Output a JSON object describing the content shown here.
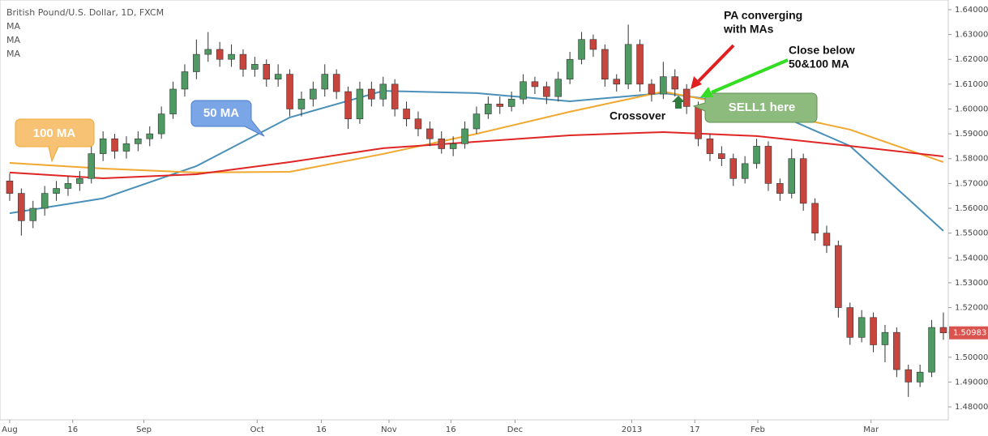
{
  "chart_data": {
    "type": "candlestick",
    "title": "British Pound/U.S. Dollar, 1D, FXCM",
    "ylim": [
      1.4748,
      1.6439
    ],
    "yticks": [
      {
        "value": 1.48,
        "label": "1.48000"
      },
      {
        "value": 1.49,
        "label": "1.49000"
      },
      {
        "value": 1.5,
        "label": "1.50000"
      },
      {
        "value": 1.51,
        "label": "1.51000"
      },
      {
        "value": 1.52,
        "label": "1.52000"
      },
      {
        "value": 1.53,
        "label": "1.53000"
      },
      {
        "value": 1.54,
        "label": "1.54000"
      },
      {
        "value": 1.55,
        "label": "1.55000"
      },
      {
        "value": 1.56,
        "label": "1.56000"
      },
      {
        "value": 1.57,
        "label": "1.57000"
      },
      {
        "value": 1.58,
        "label": "1.58000"
      },
      {
        "value": 1.59,
        "label": "1.59000"
      },
      {
        "value": 1.6,
        "label": "1.60000"
      },
      {
        "value": 1.61,
        "label": "1.61000"
      },
      {
        "value": 1.62,
        "label": "1.62000"
      },
      {
        "value": 1.63,
        "label": "1.63000"
      },
      {
        "value": 1.64,
        "label": "1.64000"
      }
    ],
    "xlim": [
      -0.83,
      80.42
    ],
    "xticks": [
      {
        "value": 0,
        "label": "Aug"
      },
      {
        "value": 5.4,
        "label": "16"
      },
      {
        "value": 11.5,
        "label": "Sep"
      },
      {
        "value": 21.2,
        "label": "Oct"
      },
      {
        "value": 26.7,
        "label": "16"
      },
      {
        "value": 32.5,
        "label": "Nov"
      },
      {
        "value": 37.8,
        "label": "16"
      },
      {
        "value": 43.3,
        "label": "Dec"
      },
      {
        "value": 53.3,
        "label": "2013"
      },
      {
        "value": 58.7,
        "label": "17"
      },
      {
        "value": 64.1,
        "label": "Feb"
      },
      {
        "value": 73.8,
        "label": "Mar"
      }
    ],
    "up_color": "#4e9a62",
    "down_color": "#c8453d",
    "candles": [
      [
        1.571,
        1.574,
        1.563,
        1.566
      ],
      [
        1.566,
        1.568,
        1.549,
        1.555
      ],
      [
        1.555,
        1.563,
        1.552,
        1.56
      ],
      [
        1.56,
        1.569,
        1.557,
        1.566
      ],
      [
        1.566,
        1.571,
        1.563,
        1.568
      ],
      [
        1.568,
        1.573,
        1.565,
        1.57
      ],
      [
        1.57,
        1.575,
        1.567,
        1.572
      ],
      [
        1.572,
        1.586,
        1.57,
        1.582
      ],
      [
        1.582,
        1.591,
        1.579,
        1.588
      ],
      [
        1.588,
        1.59,
        1.58,
        1.583
      ],
      [
        1.583,
        1.589,
        1.58,
        1.586
      ],
      [
        1.586,
        1.591,
        1.583,
        1.588
      ],
      [
        1.588,
        1.593,
        1.585,
        1.59
      ],
      [
        1.59,
        1.601,
        1.588,
        1.598
      ],
      [
        1.598,
        1.611,
        1.596,
        1.608
      ],
      [
        1.608,
        1.618,
        1.605,
        1.615
      ],
      [
        1.615,
        1.628,
        1.612,
        1.622
      ],
      [
        1.622,
        1.631,
        1.619,
        1.624
      ],
      [
        1.624,
        1.627,
        1.617,
        1.62
      ],
      [
        1.62,
        1.626,
        1.617,
        1.622
      ],
      [
        1.622,
        1.624,
        1.613,
        1.616
      ],
      [
        1.616,
        1.621,
        1.613,
        1.618
      ],
      [
        1.618,
        1.62,
        1.609,
        1.612
      ],
      [
        1.612,
        1.618,
        1.609,
        1.614
      ],
      [
        1.614,
        1.616,
        1.597,
        1.6
      ],
      [
        1.6,
        1.607,
        1.597,
        1.604
      ],
      [
        1.604,
        1.611,
        1.601,
        1.608
      ],
      [
        1.608,
        1.618,
        1.605,
        1.614
      ],
      [
        1.614,
        1.616,
        1.604,
        1.607
      ],
      [
        1.607,
        1.609,
        1.592,
        1.596
      ],
      [
        1.596,
        1.611,
        1.594,
        1.608
      ],
      [
        1.608,
        1.611,
        1.601,
        1.604
      ],
      [
        1.604,
        1.613,
        1.601,
        1.61
      ],
      [
        1.61,
        1.612,
        1.597,
        1.6
      ],
      [
        1.6,
        1.603,
        1.593,
        1.596
      ],
      [
        1.596,
        1.599,
        1.589,
        1.592
      ],
      [
        1.592,
        1.595,
        1.585,
        1.588
      ],
      [
        1.588,
        1.591,
        1.582,
        1.584
      ],
      [
        1.584,
        1.589,
        1.581,
        1.586
      ],
      [
        1.586,
        1.595,
        1.584,
        1.592
      ],
      [
        1.592,
        1.601,
        1.59,
        1.598
      ],
      [
        1.598,
        1.605,
        1.596,
        1.602
      ],
      [
        1.602,
        1.605,
        1.598,
        1.601
      ],
      [
        1.601,
        1.607,
        1.599,
        1.604
      ],
      [
        1.604,
        1.614,
        1.602,
        1.611
      ],
      [
        1.611,
        1.613,
        1.606,
        1.609
      ],
      [
        1.609,
        1.611,
        1.602,
        1.605
      ],
      [
        1.605,
        1.615,
        1.603,
        1.612
      ],
      [
        1.612,
        1.623,
        1.61,
        1.62
      ],
      [
        1.62,
        1.631,
        1.618,
        1.628
      ],
      [
        1.628,
        1.63,
        1.621,
        1.624
      ],
      [
        1.624,
        1.626,
        1.609,
        1.612
      ],
      [
        1.612,
        1.614,
        1.607,
        1.61
      ],
      [
        1.61,
        1.634,
        1.608,
        1.626
      ],
      [
        1.626,
        1.628,
        1.607,
        1.61
      ],
      [
        1.61,
        1.612,
        1.603,
        1.606
      ],
      [
        1.606,
        1.619,
        1.604,
        1.613
      ],
      [
        1.613,
        1.616,
        1.605,
        1.608
      ],
      [
        1.608,
        1.61,
        1.598,
        1.601
      ],
      [
        1.601,
        1.603,
        1.585,
        1.588
      ],
      [
        1.588,
        1.59,
        1.579,
        1.582
      ],
      [
        1.582,
        1.585,
        1.577,
        1.58
      ],
      [
        1.58,
        1.582,
        1.569,
        1.572
      ],
      [
        1.572,
        1.581,
        1.57,
        1.578
      ],
      [
        1.578,
        1.588,
        1.576,
        1.585
      ],
      [
        1.585,
        1.587,
        1.567,
        1.57
      ],
      [
        1.57,
        1.572,
        1.563,
        1.566
      ],
      [
        1.566,
        1.584,
        1.564,
        1.58
      ],
      [
        1.58,
        1.582,
        1.559,
        1.562
      ],
      [
        1.562,
        1.564,
        1.547,
        1.55
      ],
      [
        1.55,
        1.553,
        1.542,
        1.545
      ],
      [
        1.545,
        1.547,
        1.516,
        1.52
      ],
      [
        1.52,
        1.522,
        1.505,
        1.508
      ],
      [
        1.508,
        1.519,
        1.506,
        1.516
      ],
      [
        1.516,
        1.518,
        1.502,
        1.505
      ],
      [
        1.505,
        1.513,
        1.498,
        1.51
      ],
      [
        1.51,
        1.512,
        1.492,
        1.495
      ],
      [
        1.495,
        1.497,
        1.484,
        1.49
      ],
      [
        1.49,
        1.497,
        1.488,
        1.494
      ],
      [
        1.494,
        1.515,
        1.492,
        1.512
      ],
      [
        1.512,
        1.518,
        1.507,
        1.50983
      ]
    ],
    "last_price": 1.50983,
    "last_price_color": "#d9534f",
    "ma_x": [
      0,
      8,
      16,
      24,
      32,
      40,
      48,
      56,
      64,
      72,
      80
    ],
    "series": [
      {
        "name": "MA",
        "color": "#4a90b8",
        "values": [
          1.558,
          1.564,
          1.577,
          1.5966,
          1.6073,
          1.6064,
          1.6031,
          1.6064,
          1.6015,
          1.5851,
          1.5509
        ]
      },
      {
        "name": "MA",
        "color": "#f0a830",
        "values": [
          1.5783,
          1.576,
          1.5744,
          1.5747,
          1.5819,
          1.59,
          1.5989,
          1.607,
          1.5998,
          1.5917,
          1.5786
        ]
      },
      {
        "name": "MA",
        "color": "#e02525",
        "values": [
          1.5744,
          1.5721,
          1.5737,
          1.5786,
          1.5842,
          1.5868,
          1.5894,
          1.5907,
          1.5891,
          1.5851,
          1.5809
        ]
      }
    ],
    "annotations": {
      "pa_converging": [
        "PA converging",
        "with MAs"
      ],
      "close_below": [
        "Close below",
        "50&100 MA"
      ],
      "crossover": "Crossover",
      "sell": "SELL1 here",
      "ma100": "100 MA",
      "ma50": "50 MA"
    }
  }
}
